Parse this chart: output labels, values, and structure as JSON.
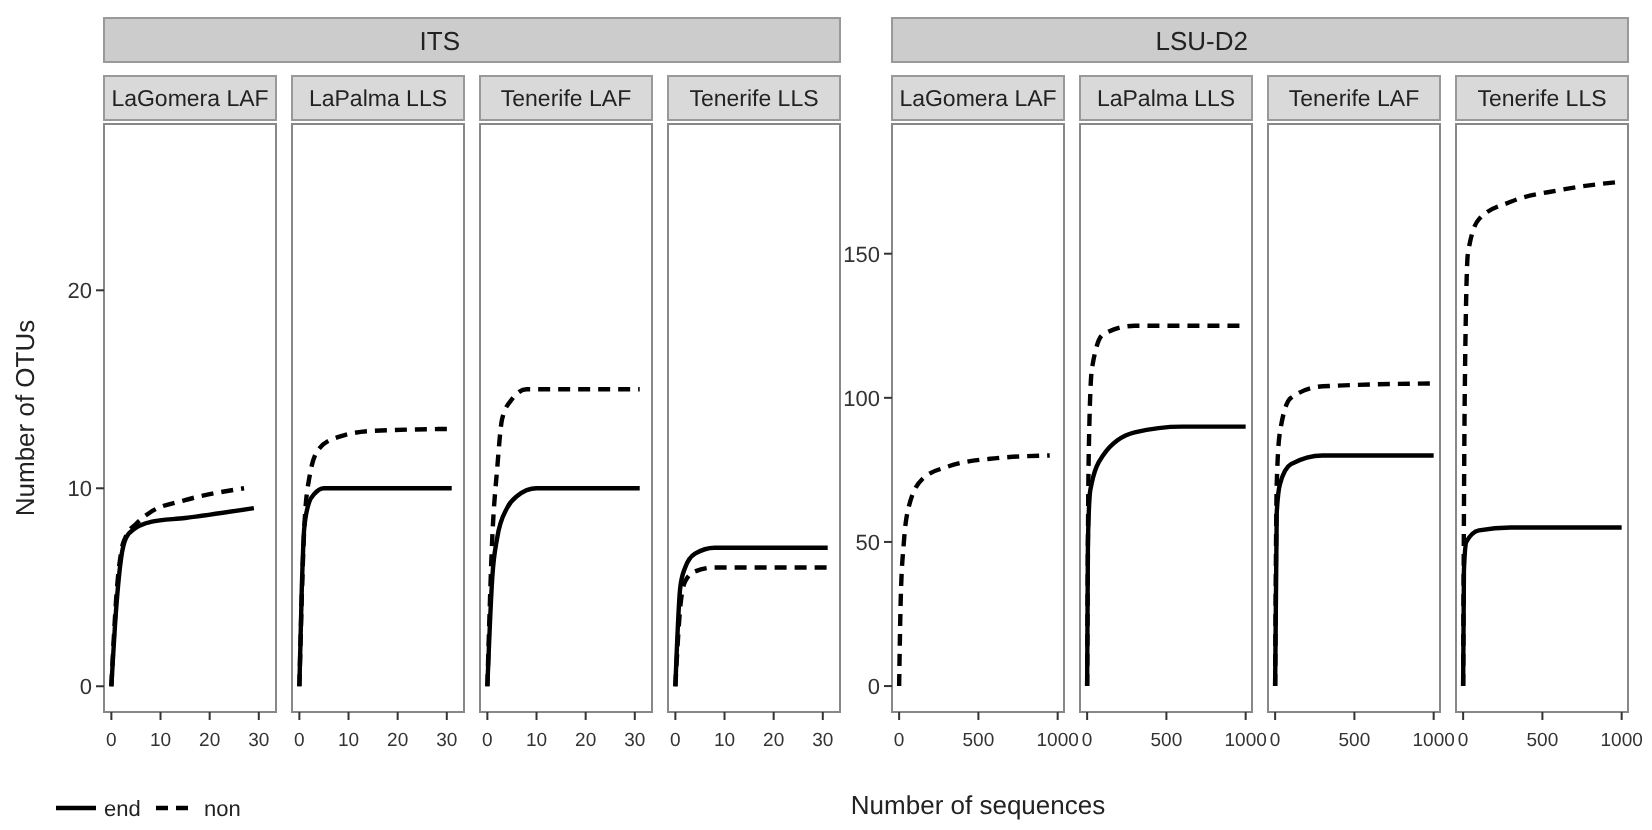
{
  "chart_data": [
    {
      "type": "line",
      "title": "LaGomera LAF",
      "ylabel": "Number of OTUs",
      "legend": "bottom left",
      "xlim": [
        -1.5,
        33.5
      ],
      "ylim": [
        -1.3,
        28.4
      ],
      "xticks": [
        0,
        10,
        20,
        30
      ],
      "yticks": [
        0,
        10,
        20
      ],
      "series": [
        {
          "name": "end",
          "color": "#000000",
          "line_style": "solid",
          "x": [
            0,
            1,
            2,
            3,
            5,
            8,
            15,
            29
          ],
          "values": [
            0,
            4,
            6.5,
            7.5,
            8,
            8.3,
            8.5,
            9
          ]
        },
        {
          "name": "non",
          "color": "#000000",
          "line_style": "dashed",
          "x": [
            0,
            1,
            2,
            3,
            5,
            8,
            15,
            27
          ],
          "values": [
            0,
            4.5,
            6.8,
            7.6,
            8.2,
            8.8,
            9.4,
            10
          ]
        }
      ]
    },
    {
      "type": "line",
      "subtitle": "ITS",
      "title": "LaPalma LLS",
      "tick_labels": "x",
      "xlim": [
        -1.5,
        33.5
      ],
      "ylim": [
        -1.3,
        28.4
      ],
      "xticks": [
        0,
        10,
        20,
        30
      ],
      "series": [
        {
          "name": "end",
          "color": "#000000",
          "line_style": "solid",
          "x": [
            0,
            0.5,
            1,
            2,
            3,
            5,
            31
          ],
          "values": [
            0,
            5,
            8,
            9.3,
            9.7,
            10,
            10
          ]
        },
        {
          "name": "non",
          "color": "#000000",
          "line_style": "dashed",
          "x": [
            0,
            1,
            2,
            4,
            8,
            15,
            31
          ],
          "values": [
            0,
            8,
            10.5,
            12,
            12.6,
            12.9,
            13
          ]
        }
      ]
    },
    {
      "type": "line",
      "title": "Tenerife LAF",
      "tick_labels": "x",
      "xlim": [
        -1.5,
        33.5
      ],
      "ylim": [
        -1.3,
        28.4
      ],
      "xticks": [
        0,
        10,
        20,
        30
      ],
      "series": [
        {
          "name": "end",
          "color": "#000000",
          "line_style": "solid",
          "x": [
            0,
            1,
            2,
            4,
            6,
            10,
            31
          ],
          "values": [
            0,
            5.5,
            7.5,
            9,
            9.6,
            10,
            10
          ]
        },
        {
          "name": "non",
          "color": "#000000",
          "line_style": "dashed",
          "x": [
            0,
            1,
            2,
            3,
            5,
            8,
            31
          ],
          "values": [
            0,
            7.5,
            11,
            13.5,
            14.5,
            15,
            15
          ]
        }
      ]
    },
    {
      "type": "line",
      "title": "Tenerife LLS",
      "tick_labels": "x",
      "xlim": [
        -1.5,
        33.5
      ],
      "ylim": [
        -1.3,
        28.4
      ],
      "xticks": [
        0,
        10,
        20,
        30
      ],
      "series": [
        {
          "name": "end",
          "color": "#000000",
          "line_style": "solid",
          "x": [
            0,
            1,
            2,
            4,
            8,
            31
          ],
          "values": [
            0,
            5,
            6,
            6.7,
            7,
            7
          ]
        },
        {
          "name": "non",
          "color": "#000000",
          "line_style": "dashed",
          "x": [
            0,
            1,
            2,
            4,
            8,
            31
          ],
          "values": [
            0,
            4,
            5.3,
            5.8,
            6,
            6
          ]
        }
      ]
    },
    {
      "type": "line",
      "title": "LaGomera LAF",
      "xlabel": "Number of sequences",
      "xlim": [
        -45,
        1040
      ],
      "ylim": [
        -9,
        195
      ],
      "xticks": [
        0,
        500,
        1000
      ],
      "yticks": [
        0,
        50,
        100,
        150
      ],
      "series": [
        {
          "name": "non",
          "color": "#000000",
          "line_style": "dashed",
          "x": [
            0,
            10,
            30,
            60,
            150,
            300,
            600,
            950
          ],
          "values": [
            0,
            30,
            50,
            62,
            72,
            76,
            79,
            80
          ]
        }
      ]
    },
    {
      "type": "line",
      "subtitle": "LSU-D2",
      "title": "LaPalma LLS",
      "tick_labels": "x",
      "xlim": [
        -45,
        1040
      ],
      "ylim": [
        -9,
        195
      ],
      "xticks": [
        0,
        500,
        1000
      ],
      "series": [
        {
          "name": "end",
          "color": "#000000",
          "line_style": "solid",
          "x": [
            0,
            5,
            20,
            100,
            300,
            600,
            1000
          ],
          "values": [
            0,
            50,
            68,
            80,
            88,
            90,
            90
          ]
        },
        {
          "name": "non",
          "color": "#000000",
          "line_style": "dashed",
          "x": [
            0,
            10,
            30,
            100,
            300,
            1000
          ],
          "values": [
            0,
            80,
            110,
            122,
            125,
            125
          ]
        }
      ]
    },
    {
      "type": "line",
      "title": "Tenerife LAF",
      "tick_labels": "x",
      "xlim": [
        -45,
        1040
      ],
      "ylim": [
        -9,
        195
      ],
      "xticks": [
        0,
        500,
        1000
      ],
      "series": [
        {
          "name": "end",
          "color": "#000000",
          "line_style": "solid",
          "x": [
            0,
            10,
            30,
            100,
            300,
            1000
          ],
          "values": [
            0,
            60,
            70,
            77,
            80,
            80
          ]
        },
        {
          "name": "non",
          "color": "#000000",
          "line_style": "dashed",
          "x": [
            0,
            10,
            30,
            100,
            300,
            1000
          ],
          "values": [
            0,
            70,
            88,
            100,
            104,
            105
          ]
        }
      ]
    },
    {
      "type": "line",
      "title": "Tenerife LLS",
      "tick_labels": "x",
      "xlim": [
        -45,
        1040
      ],
      "ylim": [
        -9,
        195
      ],
      "xticks": [
        0,
        500,
        1000
      ],
      "series": [
        {
          "name": "end",
          "color": "#000000",
          "line_style": "solid",
          "x": [
            0,
            5,
            20,
            100,
            300,
            1000
          ],
          "values": [
            0,
            40,
            50,
            54,
            55,
            55
          ]
        },
        {
          "name": "non",
          "color": "#000000",
          "line_style": "dashed",
          "x": [
            0,
            10,
            30,
            100,
            300,
            600,
            1000
          ],
          "values": [
            0,
            100,
            150,
            162,
            168,
            172,
            175
          ]
        }
      ]
    }
  ]
}
